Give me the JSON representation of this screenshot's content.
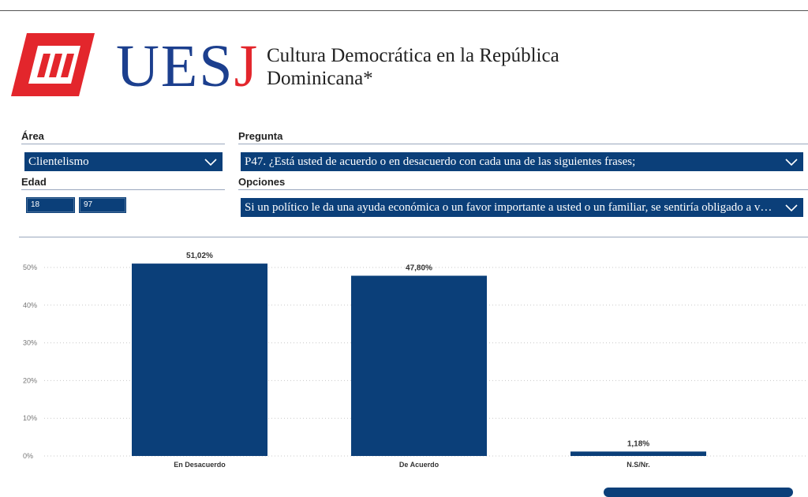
{
  "header": {
    "logo_text": "UESJ",
    "title": "Cultura Democrática en la República Dominicana*"
  },
  "filters": {
    "area": {
      "label": "Área",
      "value": "Clientelismo"
    },
    "pregunta": {
      "label": "Pregunta",
      "value": "P47. ¿Está usted de acuerdo o en desacuerdo con cada una de las siguientes frases;"
    },
    "edad": {
      "label": "Edad",
      "min": "18",
      "max": "97"
    },
    "opciones": {
      "label": "Opciones",
      "value": "Si un político le da una ayuda económica o un favor importante a usted o un familiar, se sentiría obligado a votar por él"
    }
  },
  "colors": {
    "bar": "#0b3f79",
    "logo_red": "#e3262c",
    "logo_blue": "#1c3f8e"
  },
  "chart_data": {
    "type": "bar",
    "categories": [
      "En Desacuerdo",
      "De Acuerdo",
      "N.S/Nr."
    ],
    "values": [
      51.02,
      47.8,
      1.18
    ],
    "data_labels": [
      "51,02%",
      "47,80%",
      "1,18%"
    ],
    "yticks": [
      "0%",
      "10%",
      "20%",
      "30%",
      "40%",
      "50%"
    ],
    "ylim": [
      0,
      53
    ],
    "grid": true,
    "title": "",
    "xlabel": "",
    "ylabel": ""
  }
}
